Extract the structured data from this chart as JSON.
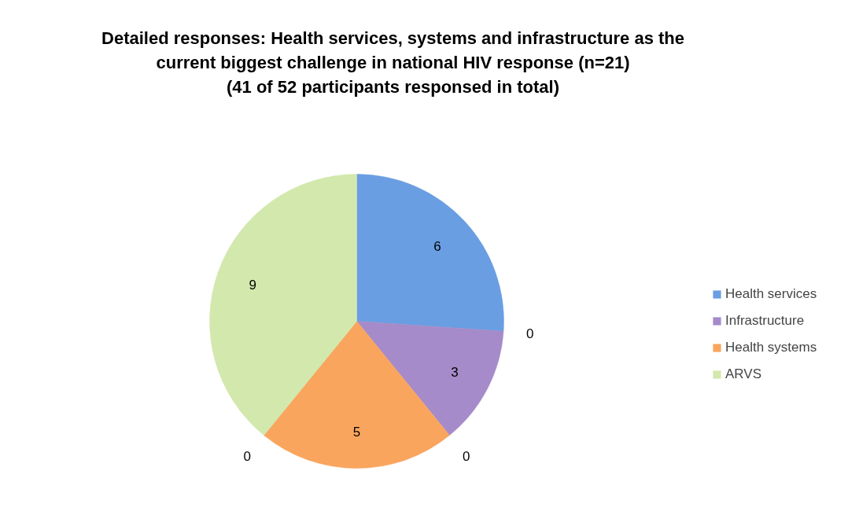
{
  "chart_data": {
    "type": "pie",
    "title": "Detailed responses: Health services, systems and infrastructure as the\ncurrent biggest challenge in national HIV response (n=21)\n(41 of 52 participants responsed in total)",
    "categories": [
      "Health services",
      "Infrastructure",
      "Health systems",
      "ARVS"
    ],
    "values": [
      6,
      3,
      5,
      9
    ],
    "colors": [
      "#6a9ee2",
      "#a58bc9",
      "#f9a55e",
      "#d2e8ad"
    ],
    "data_labels": true,
    "annotations": [
      "0",
      "0",
      "0"
    ],
    "legend": "right"
  }
}
